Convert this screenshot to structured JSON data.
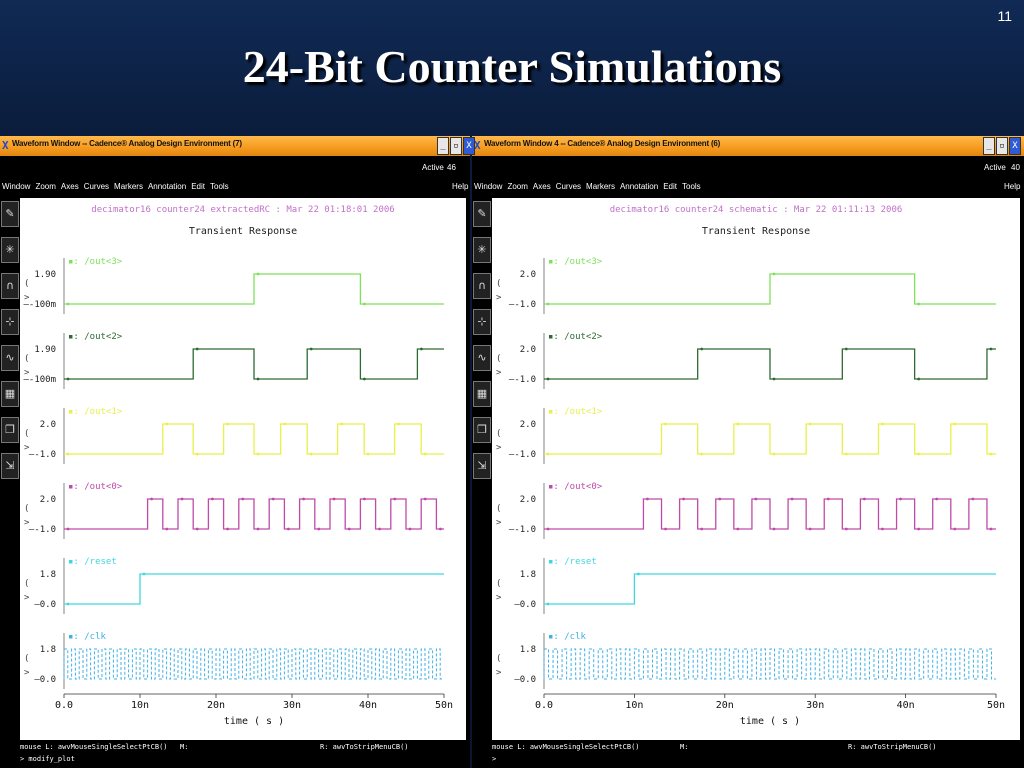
{
  "slide": {
    "number": "11",
    "title": "24-Bit Counter Simulations"
  },
  "windows": [
    {
      "title": "Waveform Window -- Cadence® Analog Design Environment (7)",
      "active_label": "Active",
      "active_num": "46",
      "menu": [
        "Window",
        "Zoom",
        "Axes",
        "Curves",
        "Markers",
        "Annotation",
        "Edit",
        "Tools"
      ],
      "help": "Help",
      "header": "decimator16 counter24 extractedRC : Mar 22 01:18:01 2006",
      "plot_title": "Transient Response",
      "xlabel": "time ( s )",
      "status_left": "mouse L: awvMouseSingleSelectPtCB()",
      "status_mid": "M:",
      "status_right": "R: awvToStripMenuCB()",
      "cmd": "> modify_plot"
    },
    {
      "title": "Waveform Window 4 -- Cadence® Analog Design Environment (6)",
      "active_label": "Active",
      "active_num": "40",
      "menu": [
        "Window",
        "Zoom",
        "Axes",
        "Curves",
        "Markers",
        "Annotation",
        "Edit",
        "Tools"
      ],
      "help": "Help",
      "header": "decimator16 counter24 schematic : Mar 22 01:11:13 2006",
      "plot_title": "Transient Response",
      "xlabel": "time ( s )",
      "status_left": "mouse L: awvMouseSingleSelectPtCB()",
      "status_mid": "M:",
      "status_right": "R: awvToStripMenuCB()",
      "cmd": ">"
    }
  ],
  "chart_data": [
    {
      "type": "line",
      "title": "Transient Response",
      "xlabel": "time ( s )",
      "x_ticks": [
        "0.0",
        "10n",
        "20n",
        "30n",
        "40n",
        "50n"
      ],
      "xlim": [
        0,
        50
      ],
      "x_unit": "ns",
      "series": [
        {
          "name": "/out<3>",
          "color": "#7fe05a",
          "yticks": [
            "1.90",
            "-100m"
          ],
          "low": -0.1,
          "high": 1.9,
          "transitions": [
            [
              0,
              "low"
            ],
            [
              25,
              "high"
            ],
            [
              39,
              "low"
            ]
          ]
        },
        {
          "name": "/out<2>",
          "color": "#2e6a32",
          "yticks": [
            "1.90",
            "-100m"
          ],
          "low": -0.1,
          "high": 1.9,
          "transitions": [
            [
              0,
              "low"
            ],
            [
              17,
              "high"
            ],
            [
              25,
              "low"
            ],
            [
              32,
              "high"
            ],
            [
              39,
              "low"
            ],
            [
              46.5,
              "high"
            ]
          ]
        },
        {
          "name": "/out<1>",
          "color": "#e8f04a",
          "yticks": [
            "2.0",
            "-1.0"
          ],
          "low": -1.0,
          "high": 2.0,
          "transitions": [
            [
              0,
              "low"
            ],
            [
              13,
              "high"
            ],
            [
              17,
              "low"
            ],
            [
              21,
              "high"
            ],
            [
              25,
              "low"
            ],
            [
              28.5,
              "high"
            ],
            [
              32,
              "low"
            ],
            [
              36,
              "high"
            ],
            [
              39.5,
              "low"
            ],
            [
              43.5,
              "high"
            ],
            [
              47,
              "low"
            ]
          ]
        },
        {
          "name": "/out<0>",
          "color": "#c04aa8",
          "yticks": [
            "2.0",
            "-1.0"
          ],
          "low": -1.0,
          "high": 2.0,
          "transitions": [
            [
              0,
              "low"
            ],
            [
              11,
              "high"
            ],
            [
              13,
              "low"
            ],
            [
              15,
              "high"
            ],
            [
              17,
              "low"
            ],
            [
              19,
              "high"
            ],
            [
              21,
              "low"
            ],
            [
              23,
              "high"
            ],
            [
              25,
              "low"
            ],
            [
              27,
              "high"
            ],
            [
              29,
              "low"
            ],
            [
              31,
              "high"
            ],
            [
              33,
              "low"
            ],
            [
              35,
              "high"
            ],
            [
              37,
              "low"
            ],
            [
              39,
              "high"
            ],
            [
              41,
              "low"
            ],
            [
              43,
              "high"
            ],
            [
              45,
              "low"
            ],
            [
              47,
              "high"
            ],
            [
              49,
              "low"
            ]
          ]
        },
        {
          "name": "/reset",
          "color": "#40d8e0",
          "yticks": [
            "1.8",
            "0.0"
          ],
          "low": 0.0,
          "high": 1.8,
          "transitions": [
            [
              0,
              "low"
            ],
            [
              10,
              "high"
            ]
          ]
        },
        {
          "name": "/clk",
          "color": "#40b0e8",
          "yticks": [
            "1.8",
            "0.0"
          ],
          "low": 0.0,
          "high": 1.8,
          "clock_period_ns": 1.0
        }
      ]
    },
    {
      "type": "line",
      "title": "Transient Response",
      "xlabel": "time ( s )",
      "x_ticks": [
        "0.0",
        "10n",
        "20n",
        "30n",
        "40n",
        "50n"
      ],
      "xlim": [
        0,
        50
      ],
      "x_unit": "ns",
      "series": [
        {
          "name": "/out<3>",
          "color": "#7fe05a",
          "yticks": [
            "2.0",
            "-1.0"
          ],
          "low": -1.0,
          "high": 2.0,
          "transitions": [
            [
              0,
              "low"
            ],
            [
              25,
              "high"
            ],
            [
              41,
              "low"
            ]
          ]
        },
        {
          "name": "/out<2>",
          "color": "#2e6a32",
          "yticks": [
            "2.0",
            "-1.0"
          ],
          "low": -1.0,
          "high": 2.0,
          "transitions": [
            [
              0,
              "low"
            ],
            [
              17,
              "high"
            ],
            [
              25,
              "low"
            ],
            [
              33,
              "high"
            ],
            [
              41,
              "low"
            ],
            [
              49,
              "high"
            ]
          ]
        },
        {
          "name": "/out<1>",
          "color": "#e8f04a",
          "yticks": [
            "2.0",
            "-1.0"
          ],
          "low": -1.0,
          "high": 2.0,
          "transitions": [
            [
              0,
              "low"
            ],
            [
              13,
              "high"
            ],
            [
              17,
              "low"
            ],
            [
              21,
              "high"
            ],
            [
              25,
              "low"
            ],
            [
              29,
              "high"
            ],
            [
              33,
              "low"
            ],
            [
              37,
              "high"
            ],
            [
              41,
              "low"
            ],
            [
              45,
              "high"
            ],
            [
              49,
              "low"
            ]
          ]
        },
        {
          "name": "/out<0>",
          "color": "#c04aa8",
          "yticks": [
            "2.0",
            "-1.0"
          ],
          "low": -1.0,
          "high": 2.0,
          "transitions": [
            [
              0,
              "low"
            ],
            [
              11,
              "high"
            ],
            [
              13,
              "low"
            ],
            [
              15,
              "high"
            ],
            [
              17,
              "low"
            ],
            [
              19,
              "high"
            ],
            [
              21,
              "low"
            ],
            [
              23,
              "high"
            ],
            [
              25,
              "low"
            ],
            [
              27,
              "high"
            ],
            [
              29,
              "low"
            ],
            [
              31,
              "high"
            ],
            [
              33,
              "low"
            ],
            [
              35,
              "high"
            ],
            [
              37,
              "low"
            ],
            [
              39,
              "high"
            ],
            [
              41,
              "low"
            ],
            [
              43,
              "high"
            ],
            [
              45,
              "low"
            ],
            [
              47,
              "high"
            ],
            [
              49,
              "low"
            ]
          ]
        },
        {
          "name": "/reset",
          "color": "#40d8e0",
          "yticks": [
            "1.8",
            "0.0"
          ],
          "low": 0.0,
          "high": 1.8,
          "transitions": [
            [
              0,
              "low"
            ],
            [
              10,
              "high"
            ]
          ]
        },
        {
          "name": "/clk",
          "color": "#40b0e8",
          "yticks": [
            "1.8",
            "0.0"
          ],
          "low": 0.0,
          "high": 1.8,
          "clock_period_ns": 1.0
        }
      ]
    }
  ],
  "tools": [
    {
      "icon": "pen-icon",
      "glyph": "✎"
    },
    {
      "icon": "crosshair-icon",
      "glyph": "✳"
    },
    {
      "icon": "magnet-icon",
      "glyph": "∩"
    },
    {
      "icon": "marker-icon",
      "glyph": "⊹"
    },
    {
      "icon": "waveform-icon",
      "glyph": "∿"
    },
    {
      "icon": "table-icon",
      "glyph": "▦"
    },
    {
      "icon": "copy-icon",
      "glyph": "❐"
    },
    {
      "icon": "export-icon",
      "glyph": "⇲"
    }
  ]
}
